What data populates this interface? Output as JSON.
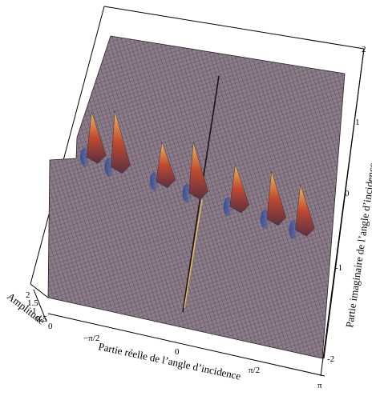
{
  "chart_data": {
    "type": "surface3d",
    "title": "",
    "xlabel": "Partie réelle de l’angle d’incidence",
    "ylabel": "Partie imaginaire de l’angle d’incidence",
    "zlabel": "Amplitude",
    "x_ticks": [
      "−π/2",
      "0",
      "π/2",
      "π"
    ],
    "x_tick_values": [
      -1.5708,
      0,
      1.5708,
      3.1416
    ],
    "y_ticks": [
      "2",
      "1",
      "0",
      "-1",
      "-2"
    ],
    "y_tick_values": [
      2,
      1,
      0,
      -1,
      -2
    ],
    "z_ticks": [
      "2",
      "1.5",
      "1",
      "0.5",
      "0"
    ],
    "z_tick_values": [
      2,
      1.5,
      1,
      0.5,
      0
    ],
    "xlim": [
      -3.1416,
      3.1416
    ],
    "ylim": [
      -2,
      2
    ],
    "zlim": [
      0,
      2
    ],
    "surface_color": "#8a7a88",
    "mesh_color": "#3a2e3a",
    "peak_colors": [
      "#e0a048",
      "#b03828",
      "#2a4a9a"
    ],
    "peaks": [
      {
        "x": -2.2,
        "y": 0.3,
        "z": 1.4
      },
      {
        "x": -1.6,
        "y": 0.2,
        "z": 1.8
      },
      {
        "x": -0.5,
        "y": 0.1,
        "z": 1.2
      },
      {
        "x": 0.3,
        "y": 0.0,
        "z": 1.6
      },
      {
        "x": 1.3,
        "y": -0.1,
        "z": 1.3
      },
      {
        "x": 2.2,
        "y": -0.2,
        "z": 1.5
      },
      {
        "x": 2.9,
        "y": -0.3,
        "z": 1.4
      }
    ]
  }
}
